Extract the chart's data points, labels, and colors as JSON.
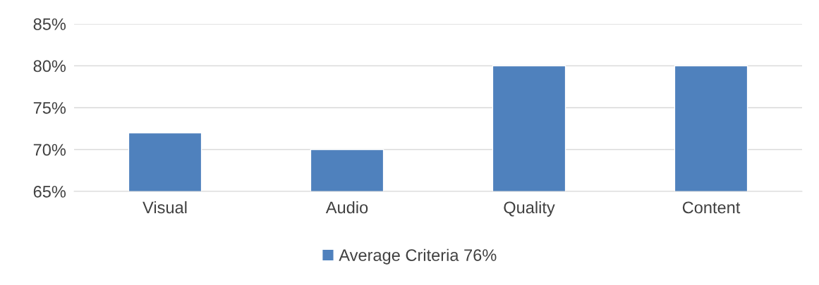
{
  "chart_data": {
    "type": "bar",
    "categories": [
      "Visual",
      "Audio",
      "Quality",
      "Content"
    ],
    "series": [
      {
        "name": "Average Criteria 76%",
        "color": "#4f81bd",
        "values": [
          72,
          70,
          80,
          80
        ]
      }
    ],
    "ylim": [
      65,
      85
    ],
    "yticks": [
      {
        "value": 65,
        "label": "65%"
      },
      {
        "value": 70,
        "label": "70%"
      },
      {
        "value": 75,
        "label": "75%"
      },
      {
        "value": 80,
        "label": "80%"
      },
      {
        "value": 85,
        "label": "85%"
      }
    ],
    "grid": "y",
    "legend": "bottom"
  }
}
